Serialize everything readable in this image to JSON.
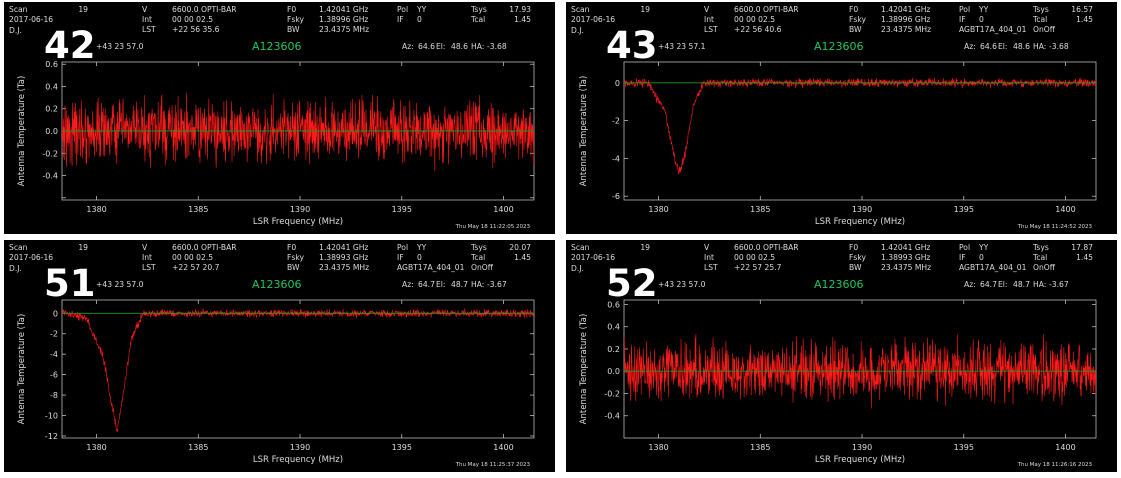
{
  "header_labels": {
    "scan": "Scan",
    "v": "V",
    "int": "Int",
    "lst": "LST",
    "f0": "F0",
    "fsky": "Fsky",
    "bw": "BW",
    "pol": "Pol",
    "if": "IF",
    "tsys": "Tsys",
    "tcal": "Tcal",
    "dj": "D.J.",
    "az": "Az:",
    "el": "El:",
    "ha": "HA:"
  },
  "colors": {
    "background": "#000000",
    "trace": "#ff1a1a",
    "baseline": "#1e9a1e",
    "object": "#22c55e",
    "text": "#dddddd"
  },
  "panels": [
    {
      "label": "42",
      "header": {
        "scan": "19",
        "date": "2017-06-16",
        "dj_value": "",
        "v": "6600.0 OPTI-BAR",
        "int": "00 00 02.5",
        "lst": "+22 56 35.6",
        "f0": "1.42041 GHz",
        "fsky": "1.38996 GHz",
        "bw": "23.4375 MHz",
        "pol": "YY",
        "if": "0",
        "proj": "",
        "tsys": "17.93",
        "tcal": "1.45",
        "mode": "",
        "coords": "+43 23 57.0",
        "object": "A123606",
        "az": "64.6",
        "el": "48.6",
        "ha": "-3.68"
      },
      "timestamp": "Thu May 18 11:22:05 2023"
    },
    {
      "label": "43",
      "header": {
        "scan": "19",
        "date": "2017-06-16",
        "dj_value": "",
        "v": "6600.0 OPTI-BAR",
        "int": "00 00 02.5",
        "lst": "+22 56 40.6",
        "f0": "1.42041 GHz",
        "fsky": "1.38996 GHz",
        "bw": "23.4375 MHz",
        "pol": "YY",
        "if": "0",
        "proj": "AGBT17A_404_01",
        "tsys": "16.57",
        "tcal": "1.45",
        "mode": "OnOff",
        "coords": "+43 23 57.1",
        "object": "A123606",
        "az": "64.6",
        "el": "48.6",
        "ha": "-3.68"
      },
      "timestamp": "Thu May 18 11:24:52 2023"
    },
    {
      "label": "51",
      "header": {
        "scan": "19",
        "date": "2017-06-16",
        "dj_value": "",
        "v": "6600.0 OPTI-BAR",
        "int": "00 00 02.5",
        "lst": "+22 57 20.7",
        "f0": "1.42041 GHz",
        "fsky": "1.38993 GHz",
        "bw": "23.4375 MHz",
        "pol": "YY",
        "if": "0",
        "proj": "AGBT17A_404_01",
        "tsys": "20.07",
        "tcal": "1.45",
        "mode": "OnOff",
        "coords": "+43 23 57.0",
        "object": "A123606",
        "az": "64.7",
        "el": "48.7",
        "ha": "-3.67"
      },
      "timestamp": "Thu May 18 11:25:37 2023"
    },
    {
      "label": "52",
      "header": {
        "scan": "19",
        "date": "2017-06-16",
        "dj_value": "",
        "v": "6600.0 OPTI-BAR",
        "int": "00 00 02.5",
        "lst": "+22 57 25.7",
        "f0": "1.42041 GHz",
        "fsky": "1.38993 GHz",
        "bw": "23.4375 MHz",
        "pol": "YY",
        "if": "0",
        "proj": "AGBT17A_404_01",
        "tsys": "17.87",
        "tcal": "1.45",
        "mode": "OnOff",
        "coords": "+43 23 57.0",
        "object": "A123606",
        "az": "64.7",
        "el": "48.7",
        "ha": "-3.67"
      },
      "timestamp": "Thu May 18 11:26:16 2023"
    }
  ],
  "chart_data": [
    {
      "type": "line",
      "xlabel": "LSR Frequency (MHz)",
      "ylabel": "Antenna Temperature (Ta)",
      "xlim": [
        1378.3,
        1401.5
      ],
      "ylim": [
        -0.62,
        0.62
      ],
      "xticks": [
        1380,
        1385,
        1390,
        1395,
        1400
      ],
      "yticks": [
        -0.6,
        -0.4,
        -0.2,
        0.0,
        0.2,
        0.4,
        0.6
      ],
      "yticklabels": [
        "",
        "-0.4",
        "-0.2",
        "0.0",
        "0.2",
        "0.4",
        "0.6"
      ],
      "noise": 0.23,
      "baseline": 0.0,
      "series": [
        {
          "x": [
            1380,
            1385,
            1390,
            1395,
            1400
          ],
          "y": [
            0,
            0,
            0,
            0,
            0
          ]
        }
      ]
    },
    {
      "type": "line",
      "xlabel": "LSR Frequency (MHz)",
      "ylabel": "Antenna Temperature (Ta)",
      "xlim": [
        1378.3,
        1401.5
      ],
      "ylim": [
        -6.2,
        1.1
      ],
      "xticks": [
        1380,
        1385,
        1390,
        1395,
        1400
      ],
      "yticks": [
        -6,
        -4,
        -2,
        0
      ],
      "yticklabels": [
        "-6",
        "-4",
        "-2",
        "0"
      ],
      "noise": 0.18,
      "baseline": 0.0,
      "series": [
        {
          "x": [
            1378.5,
            1379.5,
            1380.3,
            1380.7,
            1381.0,
            1381.3,
            1381.7,
            1382.2,
            1385,
            1390,
            1395,
            1400
          ],
          "y": [
            0,
            0,
            -1.5,
            -3.5,
            -4.8,
            -3.8,
            -1.2,
            0,
            0,
            0,
            0,
            0
          ]
        }
      ]
    },
    {
      "type": "line",
      "xlabel": "LSR Frequency (MHz)",
      "ylabel": "Antenna Temperature (Ta)",
      "xlim": [
        1378.3,
        1401.5
      ],
      "ylim": [
        -12.2,
        1.3
      ],
      "xticks": [
        1380,
        1385,
        1390,
        1395,
        1400
      ],
      "yticks": [
        -12,
        -10,
        -8,
        -6,
        -4,
        -2,
        0
      ],
      "yticklabels": [
        "-12",
        "-10",
        "-8",
        "-6",
        "-4",
        "-2",
        "0"
      ],
      "noise": 0.3,
      "baseline": 0.0,
      "series": [
        {
          "x": [
            1378.5,
            1379.5,
            1380.3,
            1380.7,
            1381.0,
            1381.3,
            1381.7,
            1382.3,
            1385,
            1390,
            1395,
            1400
          ],
          "y": [
            0,
            -0.5,
            -4,
            -8.5,
            -11.5,
            -8,
            -2.5,
            0,
            0,
            0,
            0,
            0
          ]
        }
      ]
    },
    {
      "type": "line",
      "xlabel": "LSR Frequency (MHz)",
      "ylabel": "Antenna Temperature (Ta)",
      "xlim": [
        1378.3,
        1401.5
      ],
      "ylim": [
        -0.6,
        0.64
      ],
      "xticks": [
        1380,
        1385,
        1390,
        1395,
        1400
      ],
      "yticks": [
        -0.4,
        -0.2,
        0.0,
        0.2,
        0.4,
        0.6
      ],
      "yticklabels": [
        "-0.4",
        "-0.2",
        "0.0",
        "0.2",
        "0.4",
        "0.6"
      ],
      "noise": 0.22,
      "baseline": 0.0,
      "series": [
        {
          "x": [
            1380,
            1385,
            1390,
            1395,
            1400
          ],
          "y": [
            0,
            0,
            0,
            0,
            0
          ]
        }
      ]
    }
  ]
}
